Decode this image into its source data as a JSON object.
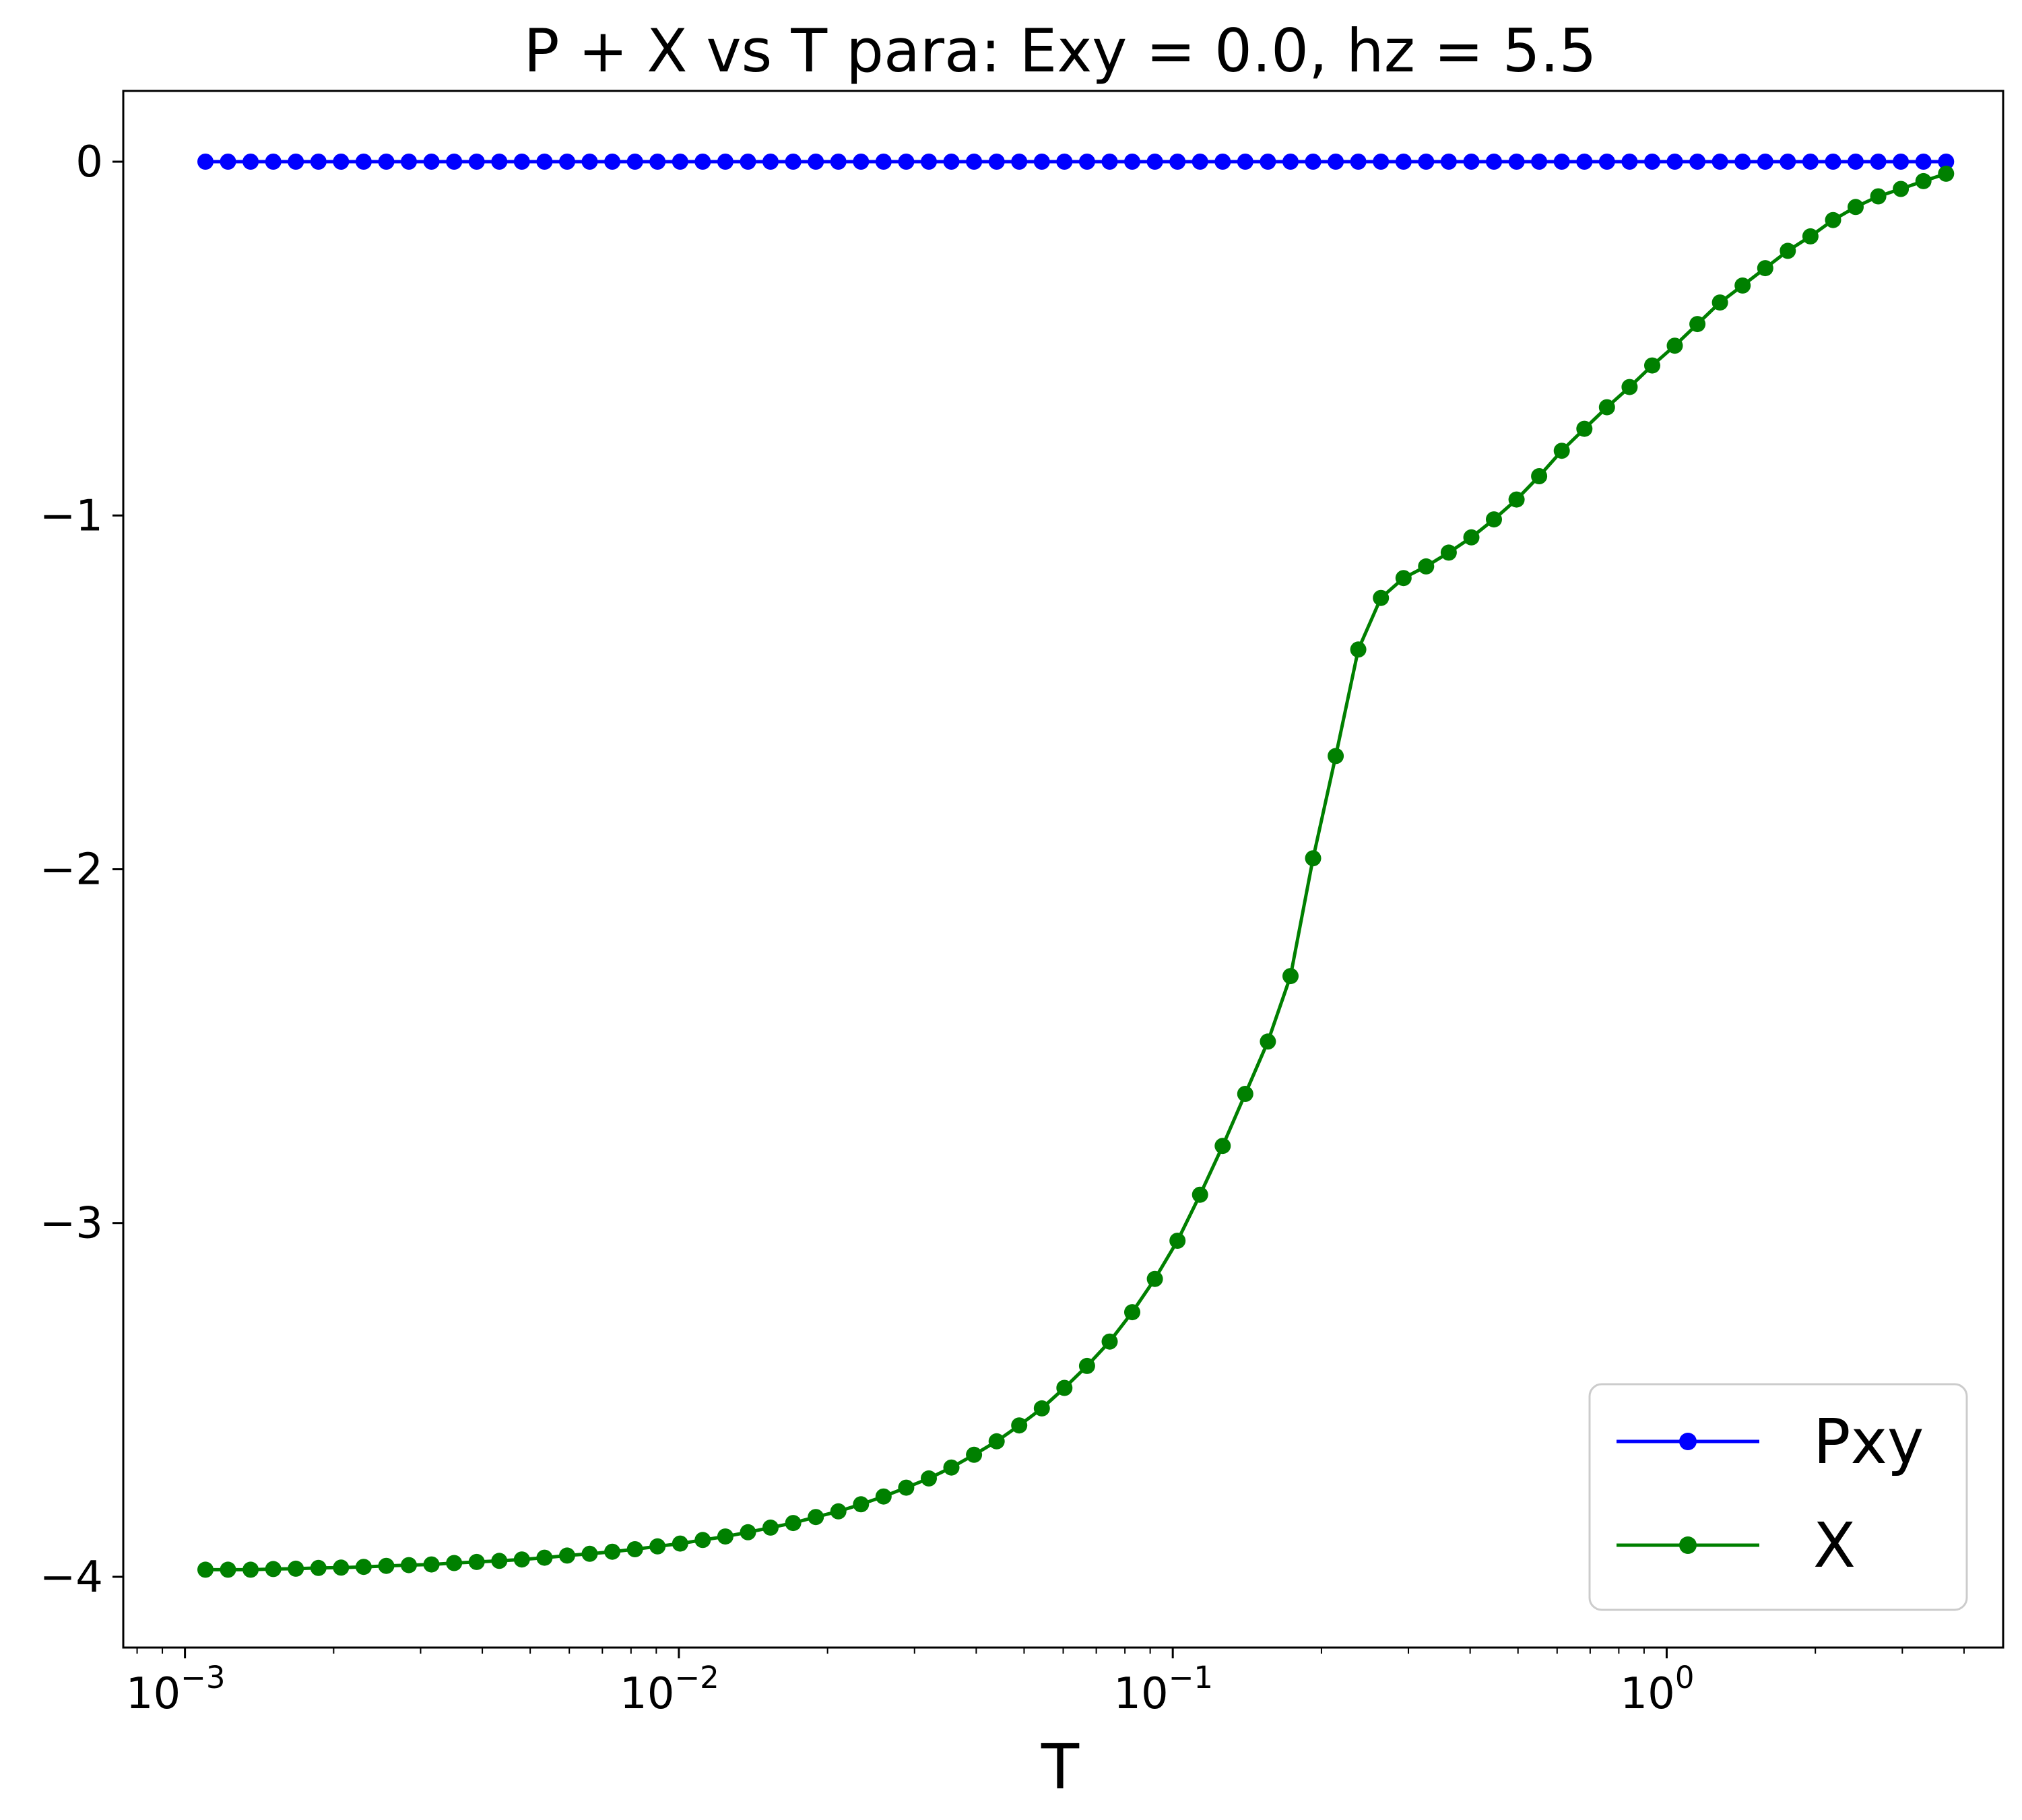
{
  "chart_data": {
    "type": "line",
    "title": "P + X vs T para: Exy = 0.0, hz = 5.5",
    "xlabel": "T",
    "ylabel": "",
    "xscale": "log",
    "xlim": [
      0.00075,
      4.8
    ],
    "ylim": [
      -4.2,
      0.2
    ],
    "grid": false,
    "legend_position": "lower right",
    "x_ticks": [
      {
        "value": 0.001,
        "base": "10",
        "exp": "−3"
      },
      {
        "value": 0.01,
        "base": "10",
        "exp": "−2"
      },
      {
        "value": 0.1,
        "base": "10",
        "exp": "−1"
      },
      {
        "value": 1,
        "base": "10",
        "exp": "0"
      }
    ],
    "y_ticks": [
      {
        "value": 0,
        "label": "0"
      },
      {
        "value": -1,
        "label": "−1"
      },
      {
        "value": -2,
        "label": "−2"
      },
      {
        "value": -3,
        "label": "−3"
      },
      {
        "value": -4,
        "label": "−4"
      }
    ],
    "x": {
      "log_start": -2.9586,
      "log_step": 0.04577,
      "count": 78
    },
    "series": [
      {
        "name": "Pxy",
        "color": "#0000ff",
        "marker": "circle",
        "values": [
          0,
          0,
          0,
          0,
          0,
          0,
          0,
          0,
          0,
          0,
          0,
          0,
          0,
          0,
          0,
          0,
          0,
          0,
          0,
          0,
          0,
          0,
          0,
          0,
          0,
          0,
          0,
          0,
          0,
          0,
          0,
          0,
          0,
          0,
          0,
          0,
          0,
          0,
          0,
          0,
          0,
          0,
          0,
          0,
          0,
          0,
          0,
          0,
          0,
          0,
          0,
          0,
          0,
          0,
          0,
          0,
          0,
          0,
          0,
          0,
          0,
          0,
          0,
          0,
          0,
          0,
          0,
          0,
          0,
          0,
          0,
          0,
          0,
          0,
          0,
          0,
          0,
          0
        ]
      },
      {
        "name": "X",
        "color": "#008000",
        "marker": "circle",
        "values": [
          -3.98,
          -3.98,
          -3.98,
          -3.978,
          -3.977,
          -3.975,
          -3.974,
          -3.972,
          -3.969,
          -3.967,
          -3.965,
          -3.961,
          -3.958,
          -3.955,
          -3.951,
          -3.946,
          -3.94,
          -3.935,
          -3.929,
          -3.922,
          -3.914,
          -3.906,
          -3.896,
          -3.886,
          -3.874,
          -3.861,
          -3.848,
          -3.831,
          -3.815,
          -3.795,
          -3.773,
          -3.748,
          -3.722,
          -3.691,
          -3.655,
          -3.617,
          -3.572,
          -3.524,
          -3.466,
          -3.404,
          -3.335,
          -3.252,
          -3.158,
          -3.05,
          -2.92,
          -2.782,
          -2.635,
          -2.487,
          -2.302,
          -1.969,
          -1.68,
          -1.379,
          -1.233,
          -1.177,
          -1.144,
          -1.105,
          -1.062,
          -1.011,
          -0.955,
          -0.889,
          -0.817,
          -0.755,
          -0.694,
          -0.637,
          -0.576,
          -0.52,
          -0.459,
          -0.398,
          -0.35,
          -0.301,
          -0.252,
          -0.211,
          -0.165,
          -0.128,
          -0.098,
          -0.077,
          -0.055,
          -0.034
        ]
      }
    ]
  }
}
